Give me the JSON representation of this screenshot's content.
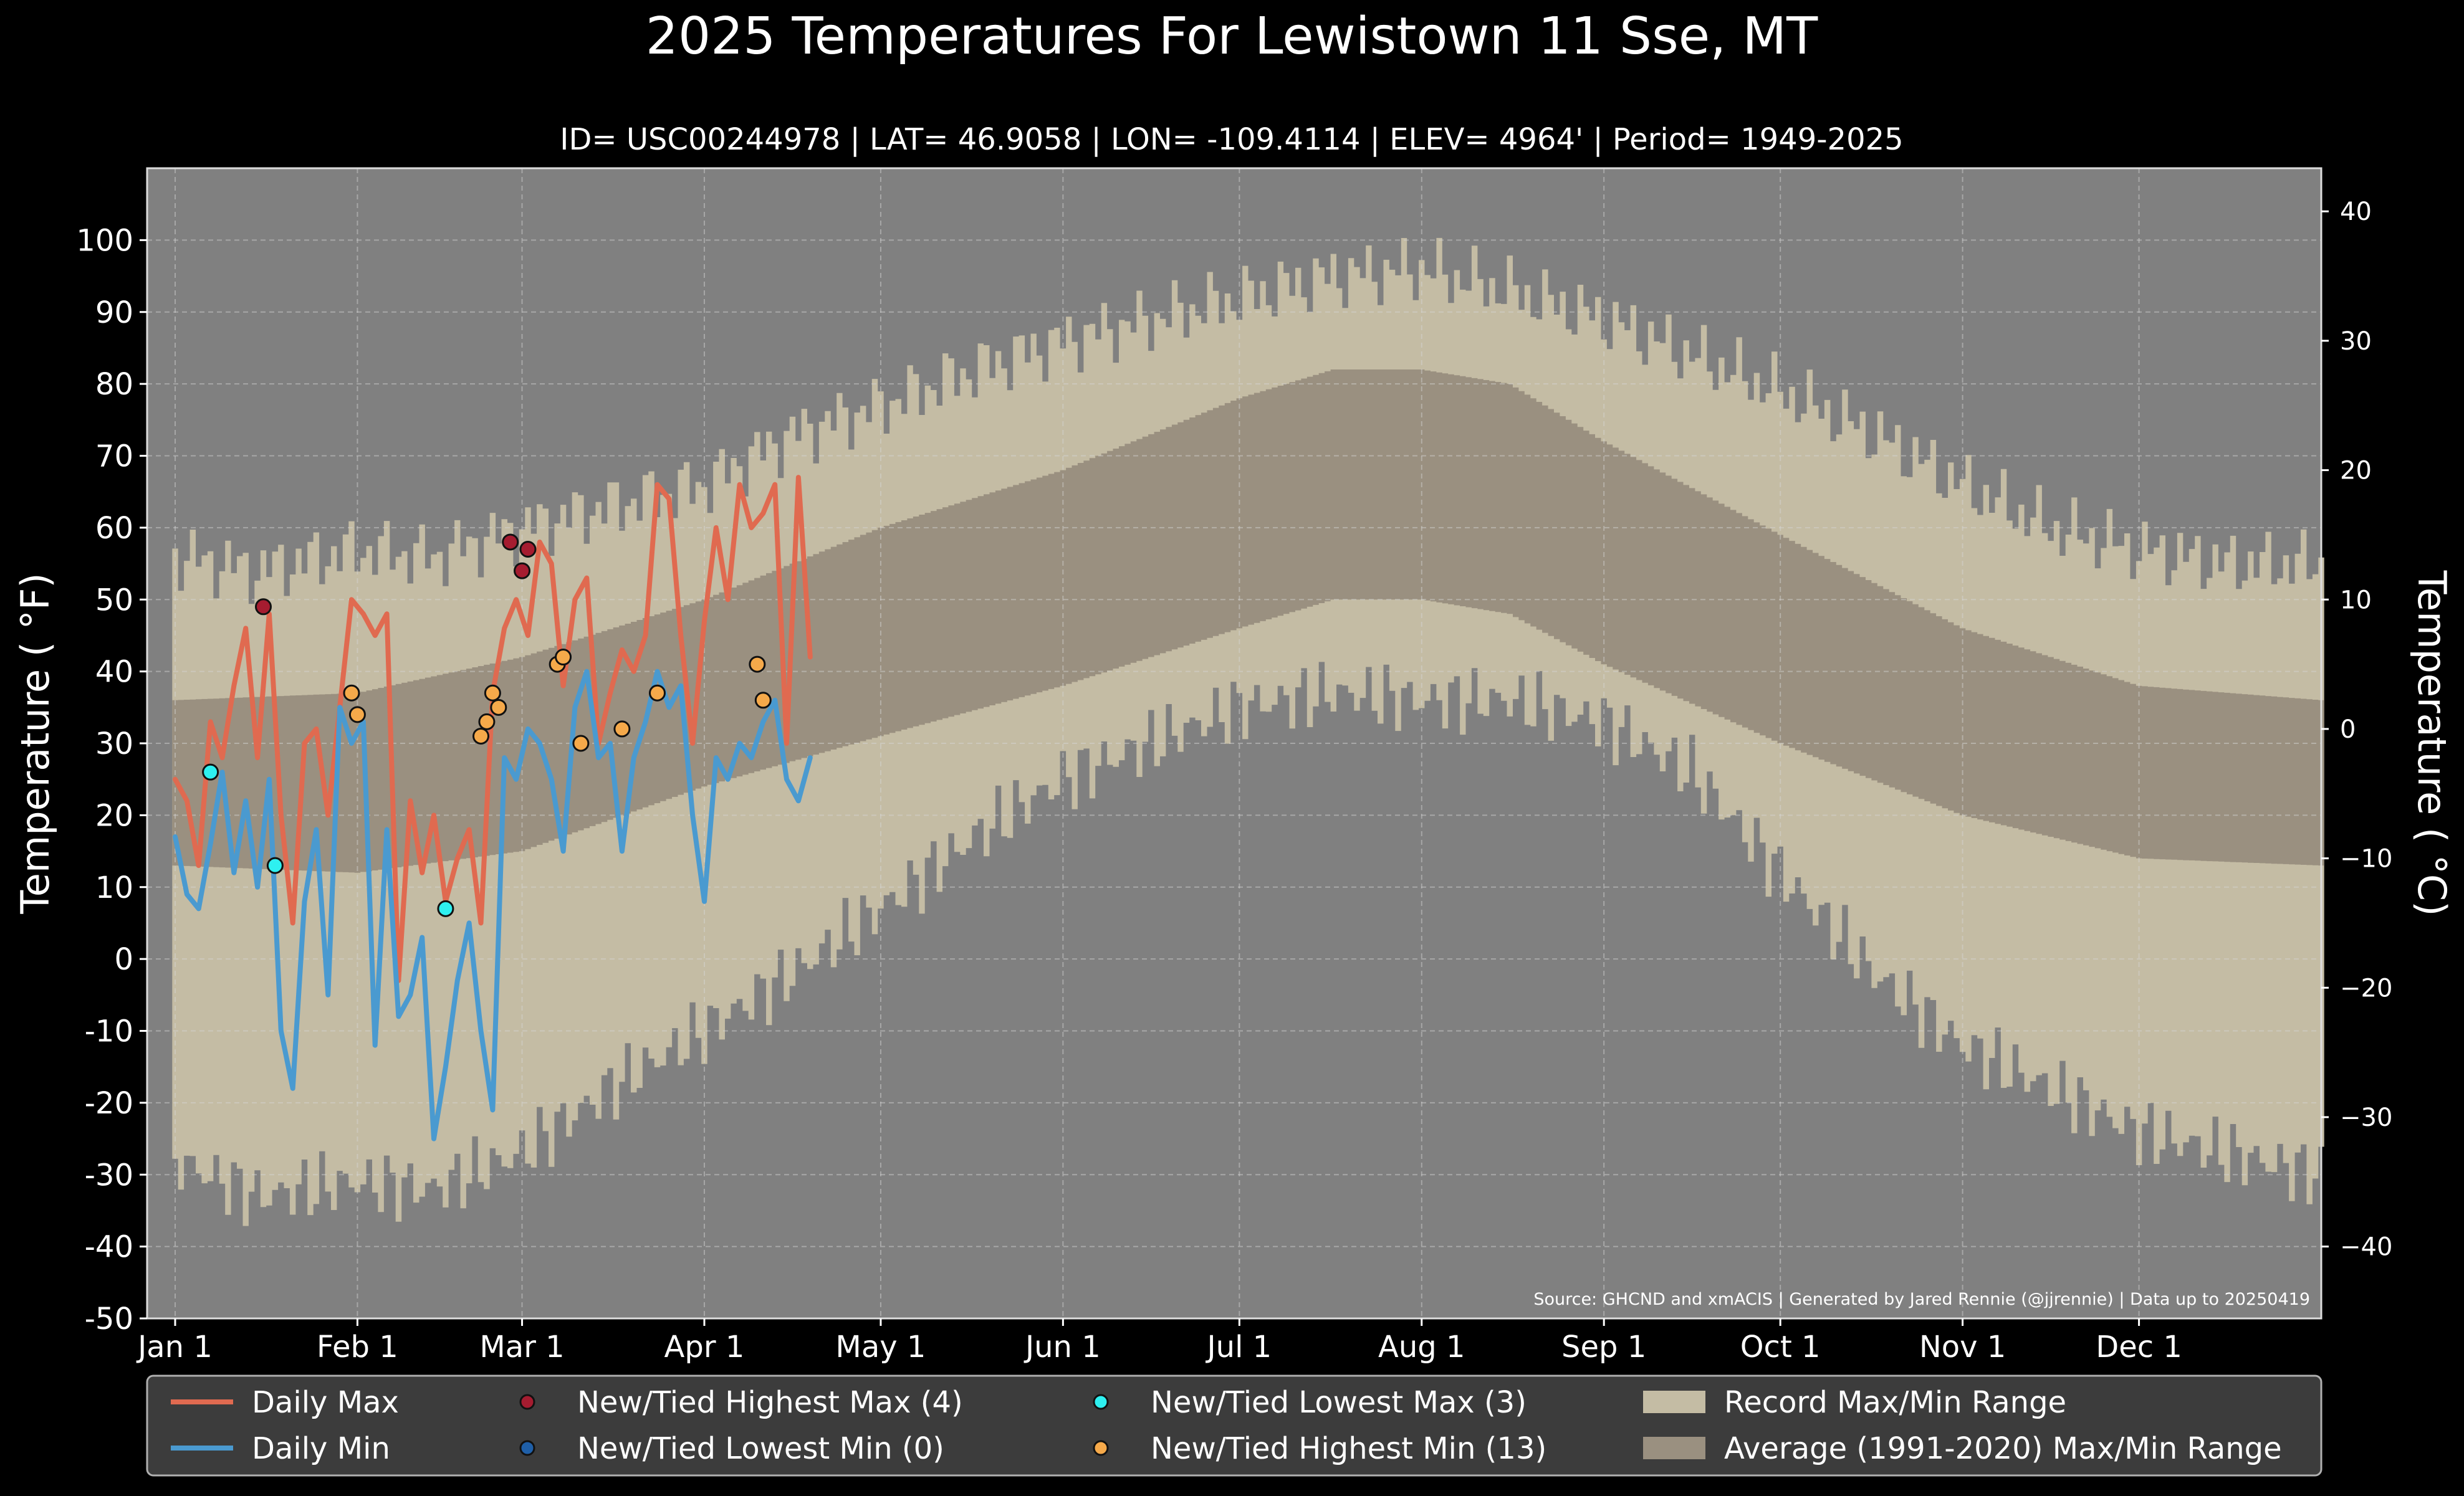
{
  "chart_data": {
    "type": "line",
    "title": "2025 Temperatures For Lewistown 11 Sse, MT",
    "subtitle": "ID= USC00244978 | LAT= 46.9058 | LON= -109.4114 | ELEV= 4964' | Period= 1949-2025",
    "ylabel": "Temperature ( °F)",
    "ylabel_right": "Temperature ( °C)",
    "ylim": [
      -50,
      110
    ],
    "yticks": [
      -50,
      -40,
      -30,
      -20,
      -10,
      0,
      10,
      20,
      30,
      40,
      50,
      60,
      70,
      80,
      90,
      100
    ],
    "yticks_right": [
      -40,
      -30,
      -20,
      -10,
      0,
      10,
      20,
      30,
      40
    ],
    "xlim_day": [
      0,
      366
    ],
    "xticks": [
      {
        "label": "Jan 1",
        "day": 1
      },
      {
        "label": "Feb 1",
        "day": 32
      },
      {
        "label": "Mar 1",
        "day": 60
      },
      {
        "label": "Apr 1",
        "day": 91
      },
      {
        "label": "May 1",
        "day": 121
      },
      {
        "label": "Jun 1",
        "day": 152
      },
      {
        "label": "Jul 1",
        "day": 182
      },
      {
        "label": "Aug 1",
        "day": 213
      },
      {
        "label": "Sep 1",
        "day": 244
      },
      {
        "label": "Oct 1",
        "day": 274
      },
      {
        "label": "Nov 1",
        "day": 305
      },
      {
        "label": "Dec 1",
        "day": 335
      }
    ],
    "grid": true,
    "source_note": "Source: GHCND and xmACIS | Generated by Jared Rennie (@jjrennie) | Data up to 20250419",
    "legend_position": "bottom",
    "legend": [
      {
        "label": "Daily Max",
        "kind": "line",
        "color": "#e06a50"
      },
      {
        "label": "Daily Min",
        "kind": "line",
        "color": "#4a9ad0"
      },
      {
        "label": "New/Tied Highest Max (4)",
        "kind": "dot",
        "color": "#a51c30"
      },
      {
        "label": "New/Tied Lowest Min (0)",
        "kind": "dot",
        "color": "#1f5fa8"
      },
      {
        "label": "New/Tied Lowest Max (3)",
        "kind": "dot",
        "color": "#2ef0f0"
      },
      {
        "label": "New/Tied Highest Min (13)",
        "kind": "dot",
        "color": "#f5a94a"
      },
      {
        "label": "Record Max/Min Range",
        "kind": "patch",
        "color": "#c4bca4"
      },
      {
        "label": "Average (1991-2020) Max/Min Range",
        "kind": "patch",
        "color": "#9a9080"
      }
    ],
    "record_max_keypoints": {
      "day": [
        1,
        15,
        32,
        45,
        60,
        75,
        91,
        106,
        121,
        137,
        152,
        167,
        182,
        198,
        213,
        228,
        244,
        259,
        274,
        290,
        305,
        320,
        335,
        350,
        366
      ],
      "value": [
        56,
        54,
        57,
        56,
        60,
        63,
        66,
        73,
        77,
        82,
        86,
        89,
        92,
        95,
        96,
        93,
        89,
        84,
        79,
        73,
        66,
        60,
        57,
        55,
        55
      ]
    },
    "record_min_keypoints": {
      "day": [
        1,
        15,
        32,
        45,
        60,
        75,
        91,
        106,
        121,
        137,
        152,
        167,
        182,
        198,
        213,
        228,
        244,
        259,
        274,
        290,
        305,
        320,
        335,
        350,
        366
      ],
      "value": [
        -28,
        -33,
        -31,
        -32,
        -27,
        -18,
        -10,
        -2,
        7,
        17,
        25,
        30,
        35,
        37,
        36,
        36,
        33,
        26,
        12,
        -2,
        -12,
        -18,
        -24,
        -27,
        -30
      ]
    },
    "avg_max_keypoints": {
      "day": [
        1,
        32,
        60,
        91,
        121,
        152,
        182,
        198,
        213,
        228,
        244,
        274,
        305,
        335,
        366
      ],
      "value": [
        36,
        37,
        42,
        50,
        60,
        68,
        78,
        82,
        82,
        80,
        72,
        59,
        46,
        38,
        36
      ]
    },
    "avg_min_keypoints": {
      "day": [
        1,
        32,
        60,
        91,
        121,
        152,
        182,
        198,
        213,
        228,
        244,
        274,
        305,
        335,
        366
      ],
      "value": [
        13,
        12,
        15,
        24,
        31,
        38,
        46,
        50,
        50,
        48,
        41,
        30,
        20,
        14,
        13
      ]
    },
    "series": [
      {
        "name": "Daily Max",
        "color": "#e06a50",
        "day": [
          1,
          3,
          5,
          7,
          9,
          11,
          13,
          15,
          17,
          19,
          21,
          23,
          25,
          27,
          29,
          31,
          33,
          35,
          37,
          39,
          41,
          43,
          45,
          47,
          49,
          51,
          53,
          55,
          57,
          59,
          61,
          63,
          65,
          67,
          69,
          71,
          73,
          75,
          77,
          79,
          81,
          83,
          85,
          87,
          89,
          91,
          93,
          95,
          97,
          99,
          101,
          103,
          105,
          107,
          109
        ],
        "values": [
          25,
          22,
          13,
          33,
          28,
          38,
          46,
          28,
          48,
          20,
          5,
          30,
          32,
          20,
          35,
          50,
          48,
          45,
          48,
          -3,
          22,
          12,
          20,
          8,
          14,
          18,
          5,
          37,
          46,
          50,
          45,
          58,
          55,
          38,
          50,
          53,
          30,
          37,
          43,
          40,
          45,
          66,
          64,
          45,
          30,
          47,
          60,
          50,
          66,
          60,
          62,
          66,
          30,
          67,
          42
        ]
      },
      {
        "name": "Daily Min",
        "color": "#4a9ad0",
        "day": [
          1,
          3,
          5,
          7,
          9,
          11,
          13,
          15,
          17,
          19,
          21,
          23,
          25,
          27,
          29,
          31,
          33,
          35,
          37,
          39,
          41,
          43,
          45,
          47,
          49,
          51,
          53,
          55,
          57,
          59,
          61,
          63,
          65,
          67,
          69,
          71,
          73,
          75,
          77,
          79,
          81,
          83,
          85,
          87,
          89,
          91,
          93,
          95,
          97,
          99,
          101,
          103,
          105,
          107,
          109
        ],
        "values": [
          17,
          9,
          7,
          16,
          26,
          12,
          22,
          10,
          25,
          -10,
          -18,
          8,
          18,
          -5,
          35,
          30,
          33,
          -12,
          18,
          -8,
          -5,
          3,
          -25,
          -15,
          -3,
          5,
          -10,
          -21,
          28,
          25,
          32,
          30,
          25,
          15,
          35,
          40,
          28,
          30,
          15,
          28,
          33,
          40,
          35,
          38,
          20,
          8,
          28,
          25,
          30,
          28,
          33,
          36,
          25,
          22,
          28
        ]
      },
      {
        "name": "New/Tied Highest Max (4)",
        "color": "#a51c30",
        "day": [
          16,
          58,
          60,
          61
        ],
        "values": [
          49,
          58,
          54,
          57
        ]
      },
      {
        "name": "New/Tied Lowest Max (3)",
        "color": "#2ef0f0",
        "day": [
          7,
          18,
          47
        ],
        "values": [
          26,
          13,
          7
        ]
      },
      {
        "name": "New/Tied Highest Min (13)",
        "color": "#f5a94a",
        "day": [
          31,
          32,
          53,
          54,
          55,
          56,
          66,
          67,
          70,
          77,
          83,
          100,
          101
        ],
        "values": [
          37,
          34,
          31,
          33,
          37,
          35,
          41,
          42,
          30,
          32,
          37,
          41,
          36
        ]
      }
    ]
  }
}
